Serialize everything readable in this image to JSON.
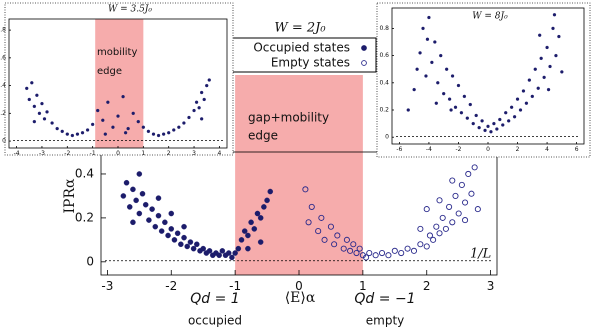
{
  "chart_data": [
    {
      "type": "scatter",
      "title": "W = 2J₀",
      "x_label": "⟨E⟩α",
      "y_label": "IPRα",
      "xlim": [
        -3.1,
        3.1
      ],
      "ylim": [
        -0.06,
        0.5
      ],
      "xticks": [
        -3,
        -2,
        -1,
        0,
        1,
        2,
        3
      ],
      "yticks": [
        0,
        0.2,
        0.4
      ],
      "grid": false,
      "legend": "top",
      "band": [
        -1,
        1
      ],
      "band_color": "#f5a3a3",
      "band_label": [
        "gap+mobility",
        "edge"
      ],
      "hline": 0.005,
      "hline_label": "1/L",
      "annotations": [
        "Qd = 1",
        "occupied",
        "Qd = −1",
        "empty"
      ],
      "series": [
        {
          "name": "Occupied states",
          "color": "#1c1c6b",
          "marker": "filled",
          "x": [
            -2.75,
            -2.7,
            -2.65,
            -2.6,
            -2.55,
            -2.5,
            -2.5,
            -2.45,
            -2.4,
            -2.35,
            -2.3,
            -2.25,
            -2.2,
            -2.15,
            -2.1,
            -2.05,
            -2.0,
            -1.95,
            -1.9,
            -1.85,
            -1.8,
            -1.75,
            -1.7,
            -1.65,
            -1.6,
            -1.55,
            -1.5,
            -1.45,
            -1.4,
            -1.35,
            -1.3,
            -1.25,
            -1.2,
            -1.15,
            -1.1,
            -1.05,
            -1.0,
            -0.95,
            -0.9,
            -0.85,
            -0.8,
            -0.75,
            -0.7,
            -0.65,
            -0.6,
            -0.55,
            -0.5,
            -0.45,
            -0.6,
            -0.8,
            -2.2,
            -2.6,
            -2.0,
            -1.8
          ],
          "values": [
            0.3,
            0.36,
            0.25,
            0.33,
            0.28,
            0.4,
            0.22,
            0.31,
            0.26,
            0.19,
            0.24,
            0.16,
            0.21,
            0.14,
            0.18,
            0.12,
            0.15,
            0.1,
            0.13,
            0.08,
            0.11,
            0.07,
            0.09,
            0.06,
            0.08,
            0.05,
            0.06,
            0.04,
            0.05,
            0.03,
            0.04,
            0.03,
            0.05,
            0.03,
            0.04,
            0.02,
            0.04,
            0.06,
            0.1,
            0.14,
            0.12,
            0.18,
            0.15,
            0.22,
            0.2,
            0.25,
            0.28,
            0.32,
            0.09,
            0.06,
            0.29,
            0.18,
            0.22,
            0.16
          ]
        },
        {
          "name": "Empty states",
          "color": "#2a2a8c",
          "marker": "open",
          "x": [
            0.1,
            0.15,
            0.2,
            0.3,
            0.35,
            0.4,
            0.5,
            0.55,
            0.6,
            0.7,
            0.75,
            0.8,
            0.85,
            0.9,
            0.95,
            1.0,
            1.05,
            1.1,
            1.2,
            1.3,
            1.4,
            1.5,
            1.6,
            1.7,
            1.8,
            1.9,
            2.0,
            2.05,
            2.1,
            2.15,
            2.2,
            2.25,
            2.3,
            2.35,
            2.4,
            2.45,
            2.5,
            2.55,
            2.6,
            2.65,
            2.7,
            2.75,
            2.8,
            2.4,
            2.2,
            2.6,
            1.9,
            2.0
          ],
          "values": [
            0.33,
            0.18,
            0.25,
            0.14,
            0.2,
            0.1,
            0.16,
            0.08,
            0.12,
            0.06,
            0.1,
            0.05,
            0.08,
            0.04,
            0.06,
            0.03,
            0.02,
            0.04,
            0.03,
            0.04,
            0.03,
            0.05,
            0.04,
            0.06,
            0.05,
            0.08,
            0.07,
            0.12,
            0.1,
            0.16,
            0.13,
            0.2,
            0.15,
            0.25,
            0.18,
            0.3,
            0.22,
            0.35,
            0.27,
            0.4,
            0.31,
            0.43,
            0.24,
            0.37,
            0.28,
            0.19,
            0.15,
            0.24
          ]
        }
      ]
    },
    {
      "type": "scatter",
      "title": "W = 3.5J₀",
      "xlim": [
        -4.3,
        4.3
      ],
      "ylim": [
        -0.05,
        0.88
      ],
      "xticks": [
        -4,
        -3,
        -2,
        -1,
        0,
        1,
        2,
        3,
        4
      ],
      "yticks": [
        0,
        0.2,
        0.4,
        0.6,
        0.8
      ],
      "grid": false,
      "band": [
        -0.9,
        1.0
      ],
      "band_color": "#f5a3a3",
      "band_label": [
        "mobility",
        "edge"
      ],
      "hline": 0.005,
      "series": [
        {
          "color": "#1c1c6b",
          "marker": "filled",
          "x": [
            -3.6,
            -3.5,
            -3.4,
            -3.3,
            -3.2,
            -3.1,
            -3.0,
            -2.9,
            -2.8,
            -2.6,
            -2.4,
            -2.2,
            -2.0,
            -1.8,
            -1.6,
            -1.4,
            -1.2,
            -1.0,
            -0.8,
            -0.6,
            -0.4,
            -0.2,
            0,
            0.2,
            0.4,
            0.6,
            0.8,
            1.0,
            1.2,
            1.4,
            1.6,
            1.8,
            2.0,
            2.2,
            2.4,
            2.6,
            2.8,
            3.0,
            3.1,
            3.2,
            3.3,
            3.4,
            3.5,
            3.6,
            -3.3,
            3.3,
            -0.5,
            0.3
          ],
          "values": [
            0.38,
            0.3,
            0.42,
            0.25,
            0.33,
            0.2,
            0.27,
            0.16,
            0.21,
            0.13,
            0.09,
            0.07,
            0.05,
            0.04,
            0.05,
            0.06,
            0.08,
            0.12,
            0.22,
            0.15,
            0.28,
            0.1,
            0.18,
            0.32,
            0.09,
            0.2,
            0.14,
            0.1,
            0.07,
            0.05,
            0.04,
            0.05,
            0.06,
            0.08,
            0.1,
            0.13,
            0.17,
            0.22,
            0.28,
            0.24,
            0.35,
            0.3,
            0.4,
            0.44,
            0.14,
            0.16,
            0.05,
            0.06
          ]
        }
      ]
    },
    {
      "type": "scatter",
      "title": "W = 8J₀",
      "xlim": [
        -6.5,
        6.5
      ],
      "ylim": [
        -0.05,
        0.95
      ],
      "xticks": [
        -6,
        -4,
        -2,
        0,
        2,
        4,
        6
      ],
      "yticks": [
        0,
        0.2,
        0.4,
        0.6,
        0.8
      ],
      "grid": false,
      "hline": 0.005,
      "series": [
        {
          "color": "#1c1c6b",
          "marker": "filled",
          "x": [
            -5.4,
            -5.0,
            -4.8,
            -4.6,
            -4.4,
            -4.2,
            -4.0,
            -3.8,
            -3.6,
            -3.4,
            -3.2,
            -3.0,
            -2.8,
            -2.6,
            -2.4,
            -2.2,
            -2.0,
            -1.8,
            -1.6,
            -1.4,
            -1.2,
            -1.0,
            -0.8,
            -0.6,
            -0.4,
            -0.2,
            0,
            0.2,
            0.4,
            0.6,
            0.8,
            1.0,
            1.2,
            1.4,
            1.6,
            1.8,
            2.0,
            2.2,
            2.4,
            2.6,
            2.8,
            3.0,
            3.2,
            3.4,
            3.6,
            3.8,
            4.0,
            4.2,
            4.4,
            4.6,
            4.8,
            5.0,
            -4.1,
            -3.5,
            -2.5,
            3.5,
            4.1,
            4.5
          ],
          "values": [
            0.2,
            0.35,
            0.5,
            0.62,
            0.8,
            0.45,
            0.88,
            0.55,
            0.7,
            0.4,
            0.6,
            0.32,
            0.5,
            0.28,
            0.45,
            0.22,
            0.38,
            0.18,
            0.3,
            0.14,
            0.24,
            0.1,
            0.16,
            0.07,
            0.12,
            0.05,
            0.08,
            0.04,
            0.1,
            0.06,
            0.13,
            0.09,
            0.18,
            0.12,
            0.22,
            0.15,
            0.28,
            0.2,
            0.34,
            0.25,
            0.42,
            0.3,
            0.5,
            0.36,
            0.58,
            0.44,
            0.66,
            0.52,
            0.8,
            0.6,
            0.74,
            0.48,
            0.72,
            0.25,
            0.2,
            0.75,
            0.35,
            0.9
          ]
        }
      ]
    }
  ]
}
